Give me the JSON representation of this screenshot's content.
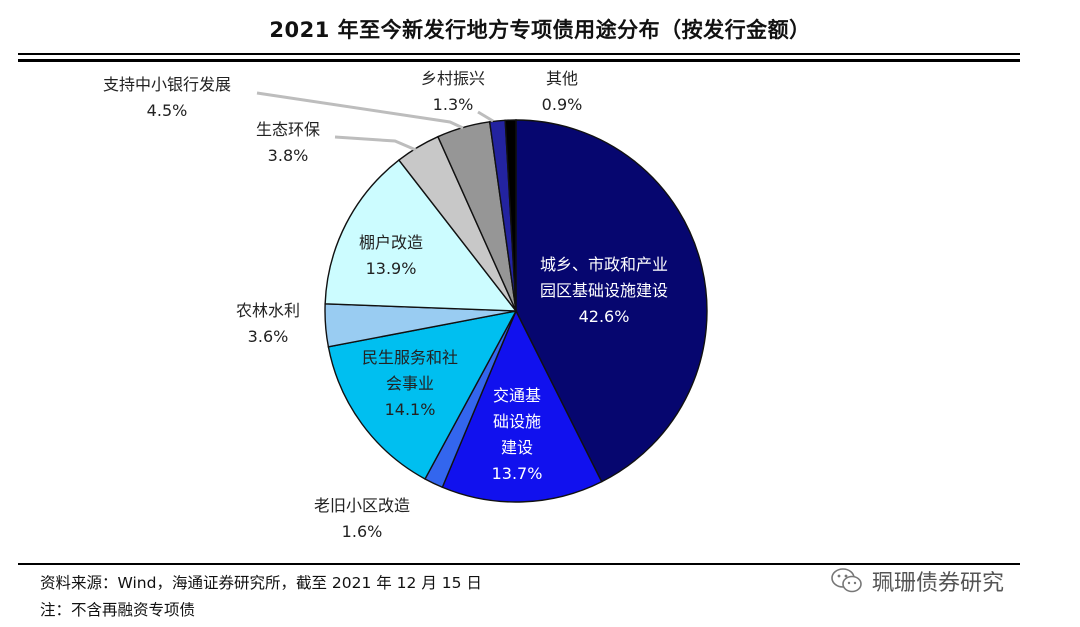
{
  "chart_data": {
    "type": "pie",
    "title": "2021 年至今新发行地方专项债用途分布（按发行金额）",
    "slices": [
      {
        "label": [
          "城乡、市政和产业",
          "园区基础设施建设"
        ],
        "value": 42.6,
        "pct": "42.6%",
        "color": "#06066f",
        "text_color": "#ffffff"
      },
      {
        "label": [
          "交通基",
          "础设施",
          "建设"
        ],
        "value": 13.7,
        "pct": "13.7%",
        "color": "#1111ee",
        "text_color": "#ffffff"
      },
      {
        "label": [
          "老旧小区改造"
        ],
        "value": 1.6,
        "pct": "1.6%",
        "color": "#3366ee",
        "text_color": "#222222"
      },
      {
        "label": [
          "民生服务和社",
          "会事业"
        ],
        "value": 14.1,
        "pct": "14.1%",
        "color": "#00bff0",
        "text_color": "#222222"
      },
      {
        "label": [
          "农林水利"
        ],
        "value": 3.6,
        "pct": "3.6%",
        "color": "#99ccf2",
        "text_color": "#222222"
      },
      {
        "label": [
          "棚户改造"
        ],
        "value": 13.9,
        "pct": "13.9%",
        "color": "#ccfcff",
        "text_color": "#222222"
      },
      {
        "label": [
          "生态环保"
        ],
        "value": 3.8,
        "pct": "3.8%",
        "color": "#c8c8c8",
        "text_color": "#222222"
      },
      {
        "label": [
          "支持中小银行发展"
        ],
        "value": 4.5,
        "pct": "4.5%",
        "color": "#969696",
        "text_color": "#222222"
      },
      {
        "label": [
          "乡村振兴"
        ],
        "value": 1.3,
        "pct": "1.3%",
        "color": "#2323a0",
        "text_color": "#222222"
      },
      {
        "label": [
          "其他"
        ],
        "value": 0.9,
        "pct": "0.9%",
        "color": "#000000",
        "text_color": "#222222"
      }
    ]
  },
  "footer": {
    "source": "资料来源：Wind，海通证券研究所，截至 2021 年 12 月 15 日",
    "note": "注：不含再融资专项债"
  },
  "watermark": {
    "text": "珮珊债券研究",
    "icon": "wechat-icon"
  }
}
